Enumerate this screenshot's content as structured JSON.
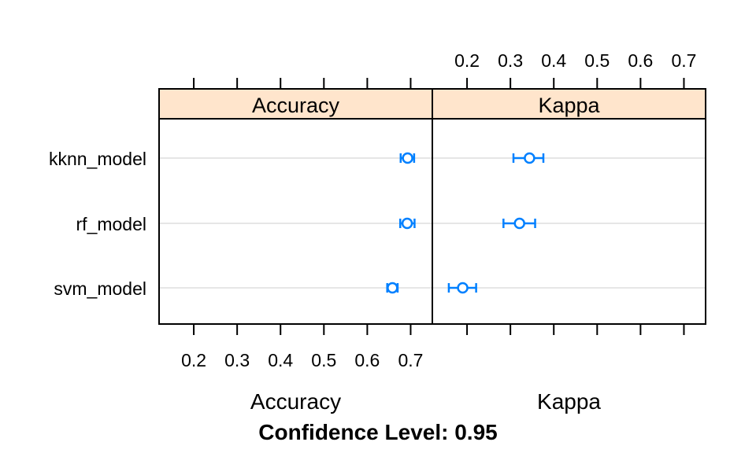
{
  "chart_data": {
    "type": "dotplot",
    "categories": [
      "kknn_model",
      "rf_model",
      "svm_model"
    ],
    "panels": [
      {
        "name": "Accuracy",
        "xlim": [
          0.12,
          0.75
        ],
        "ticks": [
          0.2,
          0.3,
          0.4,
          0.5,
          0.6,
          0.7
        ],
        "tick_labels": [
          "0.2",
          "0.3",
          "0.4",
          "0.5",
          "0.6",
          "0.7"
        ],
        "points": [
          {
            "category": "kknn_model",
            "estimate": 0.693,
            "lower": 0.677,
            "upper": 0.708
          },
          {
            "category": "rf_model",
            "estimate": 0.692,
            "lower": 0.676,
            "upper": 0.709
          },
          {
            "category": "svm_model",
            "estimate": 0.658,
            "lower": 0.646,
            "upper": 0.67
          }
        ]
      },
      {
        "name": "Kappa",
        "xlim": [
          0.12,
          0.75
        ],
        "ticks": [
          0.2,
          0.3,
          0.4,
          0.5,
          0.6,
          0.7
        ],
        "tick_labels": [
          "0.2",
          "0.3",
          "0.4",
          "0.5",
          "0.6",
          "0.7"
        ],
        "points": [
          {
            "category": "kknn_model",
            "estimate": 0.344,
            "lower": 0.307,
            "upper": 0.376
          },
          {
            "category": "rf_model",
            "estimate": 0.321,
            "lower": 0.284,
            "upper": 0.357
          },
          {
            "category": "svm_model",
            "estimate": 0.19,
            "lower": 0.158,
            "upper": 0.221
          }
        ]
      }
    ],
    "xlabels": [
      "Accuracy",
      "Kappa"
    ],
    "sub": "Confidence Level: 0.95",
    "grid": true,
    "colors": {
      "point": "#0080ff",
      "grid": "#e6e6e6",
      "strip": "#ffe5cc",
      "frame": "#000000"
    }
  }
}
